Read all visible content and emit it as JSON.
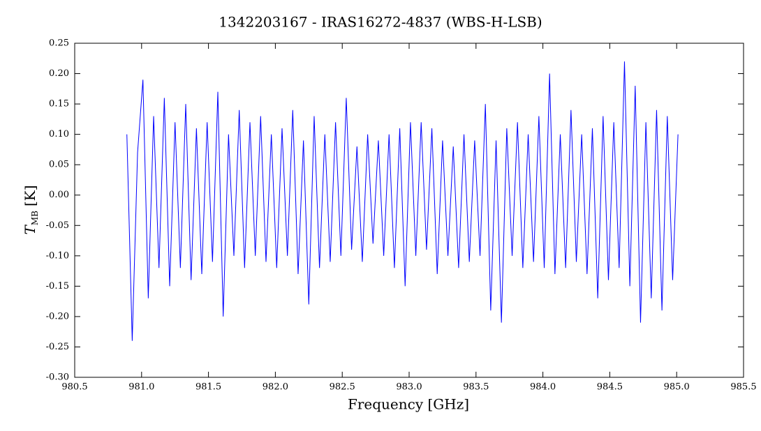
{
  "chart_data": {
    "type": "line",
    "title": "1342203167 - IRAS16272-4837 (WBS-H-LSB)",
    "xlabel": "Frequency [GHz]",
    "ylabel": "T",
    "ylabel_sub": "MB",
    "ylabel_unit": "[K]",
    "color": "#0000ff",
    "xlim": [
      980.5,
      985.5
    ],
    "xticks": [
      980.5,
      {
        "value": 981,
        "label": "981.0"
      },
      981.5,
      {
        "value": 982,
        "label": "982.0"
      },
      982.5,
      {
        "value": 983,
        "label": "983.0"
      },
      983.5,
      {
        "value": 984,
        "label": "984.0"
      },
      984.5,
      {
        "value": 985,
        "label": "985.0"
      },
      985.5
    ],
    "ylim": [
      -0.3,
      0.25
    ],
    "yticks": [
      {
        "value": -0.3,
        "label": "-0.30"
      },
      -0.25,
      {
        "value": -0.2,
        "label": "-0.20"
      },
      -0.15,
      {
        "value": -0.1,
        "label": "-0.10"
      },
      -0.05,
      {
        "value": 0,
        "label": "0.00"
      },
      0.05,
      {
        "value": 0.1,
        "label": "0.10"
      },
      0.15,
      {
        "value": 0.2,
        "label": "0.20"
      },
      0.25
    ],
    "x": [
      980.89,
      980.93,
      980.97,
      981.01,
      981.05,
      981.09,
      981.13,
      981.17,
      981.21,
      981.25,
      981.29,
      981.33,
      981.37,
      981.41,
      981.45,
      981.49,
      981.53,
      981.57,
      981.61,
      981.65,
      981.69,
      981.73,
      981.77,
      981.81,
      981.85,
      981.89,
      981.93,
      981.97,
      982.01,
      982.05,
      982.09,
      982.13,
      982.17,
      982.21,
      982.25,
      982.29,
      982.33,
      982.37,
      982.41,
      982.45,
      982.49,
      982.53,
      982.57,
      982.61,
      982.65,
      982.69,
      982.73,
      982.77,
      982.81,
      982.85,
      982.89,
      982.93,
      982.97,
      983.01,
      983.05,
      983.09,
      983.13,
      983.17,
      983.21,
      983.25,
      983.29,
      983.33,
      983.37,
      983.41,
      983.45,
      983.49,
      983.53,
      983.57,
      983.61,
      983.65,
      983.69,
      983.73,
      983.77,
      983.81,
      983.85,
      983.89,
      983.93,
      983.97,
      984.01,
      984.05,
      984.09,
      984.13,
      984.17,
      984.21,
      984.25,
      984.29,
      984.33,
      984.37,
      984.41,
      984.45,
      984.49,
      984.53,
      984.57,
      984.61,
      984.65,
      984.69,
      984.73,
      984.77,
      984.81,
      984.85,
      984.89,
      984.93,
      984.97,
      985.01
    ],
    "values": [
      0.1,
      -0.24,
      0.07,
      0.19,
      -0.17,
      0.13,
      -0.12,
      0.16,
      -0.15,
      0.12,
      -0.12,
      0.15,
      -0.14,
      0.11,
      -0.13,
      0.12,
      -0.11,
      0.17,
      -0.2,
      0.1,
      -0.1,
      0.14,
      -0.12,
      0.12,
      -0.1,
      0.13,
      -0.11,
      0.1,
      -0.12,
      0.11,
      -0.1,
      0.14,
      -0.13,
      0.09,
      -0.18,
      0.13,
      -0.12,
      0.1,
      -0.11,
      0.12,
      -0.1,
      0.16,
      -0.09,
      0.08,
      -0.11,
      0.1,
      -0.08,
      0.09,
      -0.1,
      0.1,
      -0.12,
      0.11,
      -0.15,
      0.12,
      -0.1,
      0.12,
      -0.09,
      0.11,
      -0.13,
      0.09,
      -0.1,
      0.08,
      -0.12,
      0.1,
      -0.11,
      0.09,
      -0.1,
      0.15,
      -0.19,
      0.09,
      -0.21,
      0.11,
      -0.1,
      0.12,
      -0.12,
      0.1,
      -0.11,
      0.13,
      -0.12,
      0.2,
      -0.13,
      0.1,
      -0.12,
      0.14,
      -0.11,
      0.1,
      -0.13,
      0.11,
      -0.17,
      0.13,
      -0.14,
      0.12,
      -0.12,
      0.22,
      -0.15,
      0.18,
      -0.21,
      0.12,
      -0.17,
      0.14,
      -0.19,
      0.13,
      -0.14,
      0.1
    ]
  }
}
